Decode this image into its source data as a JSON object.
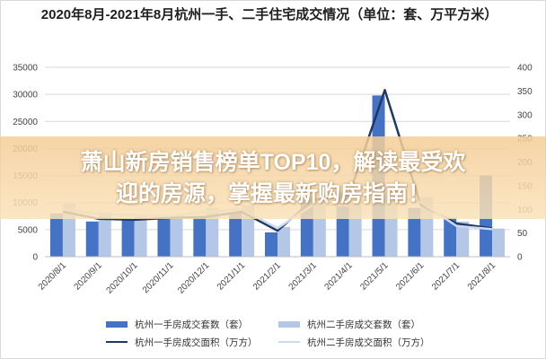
{
  "chart_data": {
    "type": "bar",
    "title": "2020年8月-2021年8月杭州一手、二手住宅成交情况（单位：套、万平方米）",
    "categories": [
      "2020/8/1",
      "2020/9/1",
      "2020/10/1",
      "2020/11/1",
      "2020/12/1",
      "2021/1/1",
      "2021/2/1",
      "2021/3/1",
      "2021/4/1",
      "2021/5/1",
      "2021/6/1",
      "2021/7/1",
      "2021/8/1"
    ],
    "y_left": {
      "range": [
        0,
        35000
      ],
      "ticks": [
        "0",
        "5000",
        "10000",
        "15000",
        "20000",
        "25000",
        "30000",
        "35000"
      ]
    },
    "y_right": {
      "range": [
        0,
        400
      ],
      "ticks": [
        "0",
        "50",
        "100",
        "150",
        "200",
        "250",
        "300",
        "350",
        "400"
      ]
    },
    "grid": true,
    "legend_position": "bottom",
    "series": [
      {
        "name": "杭州一手房成交套数（套）",
        "kind": "bar",
        "axis": "left",
        "color": "#4472c4",
        "values": [
          8000,
          6500,
          6800,
          7200,
          7200,
          8200,
          4500,
          11000,
          12000,
          29800,
          9000,
          7200,
          15000
        ]
      },
      {
        "name": "杭州二手房成交套数（套）",
        "kind": "bar",
        "axis": "left",
        "color": "#b4c7e7",
        "values": [
          9800,
          8200,
          7800,
          7500,
          9000,
          9500,
          5500,
          10200,
          9800,
          12000,
          11000,
          6500,
          5200
        ]
      },
      {
        "name": "杭州一手房成交面积（万方）",
        "kind": "line",
        "axis": "right",
        "color": "#203864",
        "values": [
          95,
          80,
          78,
          82,
          84,
          95,
          55,
          120,
          130,
          352,
          110,
          70,
          60
        ]
      },
      {
        "name": "杭州二手房成交面积（万方）",
        "kind": "line",
        "axis": "right",
        "color": "#c9d9ef",
        "values": [
          100,
          90,
          88,
          86,
          95,
          100,
          60,
          110,
          108,
          130,
          115,
          65,
          58
        ]
      }
    ]
  },
  "overlay": {
    "line1": "萧山新房销售榜单TOP10，解读最受欢",
    "line2": "迎的房源，掌握最新购房指南！"
  }
}
